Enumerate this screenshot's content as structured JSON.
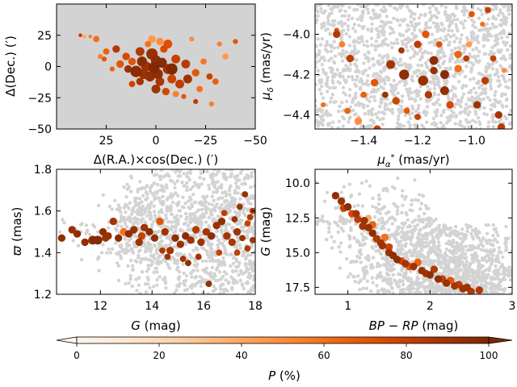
{
  "figure": {
    "background": "#ffffff",
    "panel_bg": "#d3d3d3",
    "field_color": "#d3d3d3"
  },
  "chart_data": [
    {
      "type": "scatter",
      "id": "spatial",
      "xlabel": "Δ(R.A.)×cos(Dec.) (′)",
      "ylabel": "Δ(Dec.) (′)",
      "xlim": [
        50,
        -50
      ],
      "ylim": [
        -50,
        50
      ],
      "xticks": [
        25,
        0,
        -25,
        -50
      ],
      "xticklabels": [
        "25",
        "0",
        "−25",
        "−50"
      ],
      "yticks": [
        25,
        0,
        -25,
        -50
      ],
      "yticklabels": [
        "25",
        "0",
        "−25",
        "−50"
      ],
      "background_field": "dense",
      "members": [
        [
          0,
          5,
          95,
          8
        ],
        [
          2,
          10,
          92,
          9
        ],
        [
          -3,
          3,
          97,
          8
        ],
        [
          5,
          0,
          90,
          8
        ],
        [
          -6,
          -2,
          88,
          8
        ],
        [
          8,
          12,
          85,
          7
        ],
        [
          -10,
          6,
          80,
          7
        ],
        [
          12,
          4,
          70,
          6
        ],
        [
          3,
          -8,
          93,
          8
        ],
        [
          -2,
          -12,
          87,
          7
        ],
        [
          6,
          -6,
          91,
          8
        ],
        [
          -8,
          -10,
          78,
          7
        ],
        [
          15,
          8,
          75,
          6
        ],
        [
          -15,
          2,
          83,
          7
        ],
        [
          20,
          14,
          85,
          6
        ],
        [
          25,
          12,
          65,
          5
        ],
        [
          -20,
          -5,
          70,
          6
        ],
        [
          10,
          -4,
          96,
          9
        ],
        [
          -4,
          14,
          74,
          6
        ],
        [
          1,
          -1,
          99,
          9
        ],
        [
          4,
          18,
          60,
          5
        ],
        [
          -12,
          -14,
          82,
          7
        ],
        [
          -5,
          -20,
          76,
          6
        ],
        [
          0,
          -18,
          90,
          7
        ],
        [
          -16,
          -10,
          90,
          7
        ],
        [
          -22,
          -18,
          60,
          5
        ],
        [
          -28,
          -30,
          55,
          4
        ],
        [
          -30,
          -12,
          66,
          5
        ],
        [
          -35,
          8,
          45,
          5
        ],
        [
          -40,
          20,
          70,
          4
        ],
        [
          -32,
          18,
          55,
          4
        ],
        [
          -18,
          22,
          50,
          4
        ],
        [
          -6,
          18,
          72,
          7
        ],
        [
          -24,
          4,
          58,
          5
        ],
        [
          -27,
          -8,
          80,
          5
        ],
        [
          -14,
          -24,
          70,
          4
        ],
        [
          -10,
          -22,
          55,
          5
        ],
        [
          -20,
          -28,
          82,
          4
        ],
        [
          8,
          -12,
          88,
          6
        ],
        [
          14,
          -2,
          92,
          6
        ],
        [
          18,
          2,
          70,
          6
        ],
        [
          30,
          22,
          60,
          5
        ],
        [
          33,
          24,
          55,
          3
        ],
        [
          36,
          24,
          40,
          3
        ],
        [
          38,
          25,
          80,
          3
        ],
        [
          22,
          -2,
          65,
          4
        ],
        [
          28,
          8,
          55,
          4
        ],
        [
          26,
          6,
          70,
          4
        ],
        [
          12,
          -14,
          78,
          5
        ],
        [
          2,
          22,
          45,
          6
        ],
        [
          -2,
          20,
          50,
          6
        ],
        [
          -8,
          -2,
          99,
          9
        ],
        [
          7,
          4,
          96,
          8
        ],
        [
          -1,
          -6,
          94,
          8
        ]
      ]
    },
    {
      "type": "scatter",
      "id": "proper_motion",
      "xlabel": "μα* (mas/yr)",
      "ylabel": "μδ (mas/yr)",
      "xlim": [
        -1.58,
        -0.85
      ],
      "ylim": [
        -4.47,
        -3.85
      ],
      "xticks": [
        -1.4,
        -1.2,
        -1.0
      ],
      "xticklabels": [
        "−1.4",
        "−1.2",
        "−1.0"
      ],
      "yticks": [
        -4.0,
        -4.2,
        -4.4
      ],
      "yticklabels": [
        "−4.0",
        "−4.2",
        "−4.4"
      ],
      "background_field": "dense",
      "members": [
        [
          -1.25,
          -4.2,
          95,
          8
        ],
        [
          -1.18,
          -4.23,
          92,
          8
        ],
        [
          -1.1,
          -4.28,
          93,
          7
        ],
        [
          -1.3,
          -4.15,
          88,
          7
        ],
        [
          -1.2,
          -4.05,
          82,
          6
        ],
        [
          -1.05,
          -4.17,
          60,
          6
        ],
        [
          -1.5,
          -4.0,
          85,
          6
        ],
        [
          -1.45,
          -4.12,
          82,
          6
        ],
        [
          -1.42,
          -4.43,
          50,
          6
        ],
        [
          -1.35,
          -4.47,
          80,
          6
        ],
        [
          -1.28,
          -4.33,
          78,
          6
        ],
        [
          -1.24,
          -4.38,
          68,
          5
        ],
        [
          -1.17,
          -4.0,
          70,
          6
        ],
        [
          -1.12,
          -4.05,
          72,
          5
        ],
        [
          -1.02,
          -4.12,
          82,
          5
        ],
        [
          -0.95,
          -4.23,
          82,
          6
        ],
        [
          -0.92,
          -4.12,
          80,
          5
        ],
        [
          -0.88,
          -4.18,
          50,
          4
        ],
        [
          -1.14,
          -4.13,
          95,
          7
        ],
        [
          -1.16,
          -4.3,
          85,
          6
        ],
        [
          -1.08,
          -4.35,
          75,
          6
        ],
        [
          -0.98,
          -4.35,
          90,
          6
        ],
        [
          -0.9,
          -4.4,
          88,
          6
        ],
        [
          -0.89,
          -4.46,
          82,
          6
        ],
        [
          -1.36,
          -4.24,
          70,
          6
        ],
        [
          -1.32,
          -4.3,
          92,
          5
        ],
        [
          -1.4,
          -4.3,
          65,
          5
        ],
        [
          -1.48,
          -4.05,
          55,
          5
        ],
        [
          -1.55,
          -4.35,
          60,
          4
        ],
        [
          -1.0,
          -3.9,
          70,
          5
        ],
        [
          -0.94,
          -3.88,
          80,
          5
        ],
        [
          -0.96,
          -3.95,
          60,
          4
        ],
        [
          -1.26,
          -4.08,
          88,
          5
        ],
        [
          -1.1,
          -4.2,
          97,
          7
        ],
        [
          -1.14,
          -4.18,
          92,
          6
        ],
        [
          -1.05,
          -4.1,
          65,
          6
        ],
        [
          -1.01,
          -4.05,
          45,
          5
        ],
        [
          -1.5,
          -3.98,
          70,
          4
        ],
        [
          -1.46,
          -4.38,
          65,
          5
        ],
        [
          -1.2,
          -4.41,
          80,
          5
        ]
      ]
    },
    {
      "type": "scatter",
      "id": "parallax",
      "xlabel": "G (mag)",
      "ylabel": "ϖ (mas)",
      "xlim": [
        10.3,
        18
      ],
      "ylim": [
        1.2,
        1.8
      ],
      "xticks": [
        12,
        14,
        16,
        18
      ],
      "xticklabels": [
        "12",
        "14",
        "16",
        "18"
      ],
      "yticks": [
        1.2,
        1.4,
        1.6,
        1.8
      ],
      "yticklabels": [
        "1.2",
        "1.4",
        "1.6",
        "1.8"
      ],
      "background_field": "dense_faint",
      "members": [
        [
          10.5,
          1.47,
          95,
          6
        ],
        [
          10.9,
          1.51,
          92,
          6
        ],
        [
          11.1,
          1.49,
          95,
          6
        ],
        [
          11.4,
          1.45,
          93,
          6
        ],
        [
          11.7,
          1.46,
          97,
          7
        ],
        [
          11.9,
          1.46,
          98,
          7
        ],
        [
          12.1,
          1.5,
          94,
          6
        ],
        [
          12.3,
          1.48,
          92,
          6
        ],
        [
          12.5,
          1.55,
          88,
          6
        ],
        [
          12.7,
          1.47,
          96,
          6
        ],
        [
          12.9,
          1.5,
          60,
          6
        ],
        [
          13.1,
          1.49,
          95,
          6
        ],
        [
          13.3,
          1.51,
          92,
          6
        ],
        [
          13.5,
          1.45,
          89,
          6
        ],
        [
          13.7,
          1.52,
          90,
          6
        ],
        [
          13.9,
          1.5,
          96,
          6
        ],
        [
          14.1,
          1.47,
          94,
          6
        ],
        [
          14.3,
          1.55,
          70,
          6
        ],
        [
          14.5,
          1.5,
          90,
          6
        ],
        [
          14.7,
          1.41,
          88,
          6
        ],
        [
          14.9,
          1.47,
          95,
          6
        ],
        [
          15.1,
          1.44,
          92,
          6
        ],
        [
          15.3,
          1.48,
          96,
          6
        ],
        [
          15.5,
          1.46,
          90,
          6
        ],
        [
          15.7,
          1.51,
          85,
          6
        ],
        [
          15.9,
          1.45,
          90,
          6
        ],
        [
          16.1,
          1.5,
          88,
          6
        ],
        [
          16.3,
          1.48,
          95,
          6
        ],
        [
          16.5,
          1.53,
          92,
          6
        ],
        [
          16.7,
          1.55,
          94,
          6
        ],
        [
          16.9,
          1.48,
          88,
          6
        ],
        [
          17.1,
          1.45,
          86,
          6
        ],
        [
          17.3,
          1.5,
          90,
          6
        ],
        [
          17.5,
          1.47,
          92,
          5
        ],
        [
          17.7,
          1.42,
          85,
          5
        ],
        [
          17.9,
          1.46,
          88,
          5
        ],
        [
          17.4,
          1.62,
          90,
          5
        ],
        [
          17.6,
          1.68,
          92,
          5
        ],
        [
          17.8,
          1.57,
          85,
          5
        ],
        [
          17.2,
          1.56,
          90,
          5
        ],
        [
          16.8,
          1.59,
          82,
          5
        ],
        [
          16.6,
          1.4,
          80,
          5
        ],
        [
          16.2,
          1.25,
          94,
          5
        ],
        [
          15.8,
          1.38,
          88,
          5
        ],
        [
          15.2,
          1.37,
          88,
          5
        ],
        [
          14.4,
          1.41,
          85,
          5
        ],
        [
          14.6,
          1.38,
          90,
          5
        ],
        [
          15.4,
          1.35,
          94,
          5
        ],
        [
          12.2,
          1.47,
          90,
          6
        ],
        [
          13.6,
          1.48,
          80,
          6
        ],
        [
          17.7,
          1.54,
          80,
          5
        ],
        [
          17.9,
          1.6,
          85,
          5
        ],
        [
          17.3,
          1.4,
          80,
          5
        ]
      ]
    },
    {
      "type": "scatter",
      "id": "cmd",
      "xlabel": "BP − RP (mag)",
      "ylabel": "G (mag)",
      "xlim": [
        0.6,
        3.0
      ],
      "ylim": [
        18,
        9
      ],
      "xticks": [
        1,
        2,
        3
      ],
      "xticklabels": [
        "1",
        "2",
        "3"
      ],
      "yticks": [
        10.0,
        12.5,
        15.0,
        17.5
      ],
      "yticklabels": [
        "10.0",
        "12.5",
        "15.0",
        "17.5"
      ],
      "background_field": "dense_red",
      "members": [
        [
          0.85,
          10.9,
          95,
          6
        ],
        [
          0.92,
          11.3,
          92,
          6
        ],
        [
          1.0,
          11.7,
          96,
          6
        ],
        [
          1.1,
          12.2,
          88,
          6
        ],
        [
          1.2,
          12.7,
          90,
          6
        ],
        [
          1.25,
          13.2,
          92,
          6
        ],
        [
          1.3,
          13.6,
          94,
          6
        ],
        [
          1.35,
          14.0,
          85,
          6
        ],
        [
          1.42,
          14.5,
          90,
          6
        ],
        [
          1.5,
          15.0,
          92,
          6
        ],
        [
          1.55,
          15.2,
          95,
          6
        ],
        [
          1.6,
          15.5,
          94,
          6
        ],
        [
          1.7,
          15.8,
          88,
          6
        ],
        [
          1.8,
          16.0,
          90,
          6
        ],
        [
          1.9,
          16.3,
          92,
          6
        ],
        [
          2.0,
          16.6,
          94,
          6
        ],
        [
          2.1,
          16.9,
          93,
          6
        ],
        [
          2.2,
          17.2,
          92,
          6
        ],
        [
          2.3,
          17.4,
          88,
          6
        ],
        [
          2.4,
          17.6,
          90,
          6
        ],
        [
          2.5,
          17.8,
          85,
          6
        ],
        [
          1.45,
          13.9,
          60,
          6
        ],
        [
          1.25,
          12.5,
          40,
          5
        ],
        [
          1.75,
          16.0,
          70,
          6
        ],
        [
          2.05,
          16.2,
          85,
          6
        ],
        [
          2.15,
          16.9,
          80,
          6
        ],
        [
          2.35,
          17.3,
          82,
          6
        ],
        [
          1.65,
          15.6,
          75,
          6
        ],
        [
          1.5,
          14.6,
          78,
          6
        ],
        [
          0.95,
          11.8,
          80,
          6
        ],
        [
          1.05,
          12.2,
          75,
          6
        ],
        [
          1.12,
          12.6,
          82,
          6
        ],
        [
          1.18,
          13.1,
          88,
          6
        ],
        [
          2.45,
          17.5,
          90,
          6
        ],
        [
          2.6,
          17.7,
          85,
          6
        ],
        [
          1.85,
          15.7,
          65,
          6
        ],
        [
          1.95,
          16.5,
          88,
          6
        ],
        [
          2.25,
          17.0,
          70,
          6
        ],
        [
          1.4,
          14.3,
          90,
          6
        ],
        [
          1.3,
          13.0,
          65,
          6
        ]
      ]
    }
  ],
  "colorbar": {
    "label": "P (%)",
    "ticks": [
      0,
      20,
      40,
      60,
      80,
      100
    ],
    "ticklabels": [
      "0",
      "20",
      "40",
      "60",
      "80",
      "100"
    ],
    "range": [
      0,
      100
    ],
    "colors": [
      "#fff5eb",
      "#fee6ce",
      "#fdd0a2",
      "#fdae6b",
      "#fd8d3c",
      "#f16913",
      "#d94801",
      "#a63603",
      "#7f2704"
    ]
  }
}
